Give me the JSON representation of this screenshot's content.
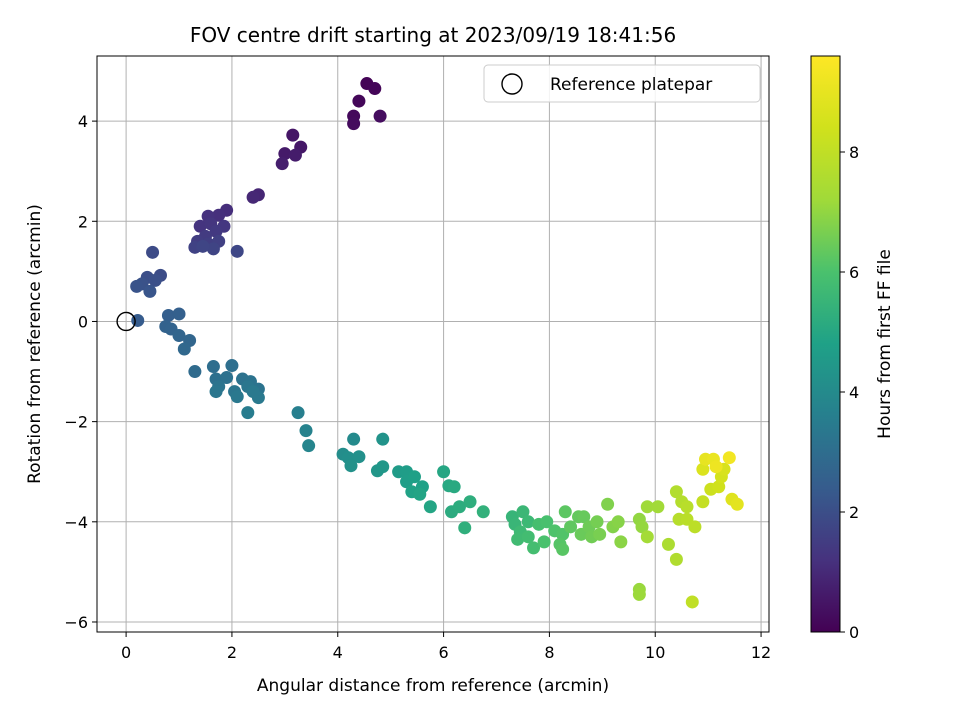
{
  "chart_data": {
    "type": "scatter",
    "title": "FOV centre drift starting at 2023/09/19 18:41:56",
    "xlabel": "Angular distance from reference (arcmin)",
    "ylabel": "Rotation from reference (arcmin)",
    "colorbar_label": "Hours from first FF file",
    "colormap": "viridis",
    "xlim": [
      -0.55,
      12.15
    ],
    "ylim": [
      -6.2,
      5.3
    ],
    "clim": [
      0,
      9.6
    ],
    "xticks": [
      0,
      2,
      4,
      6,
      8,
      10,
      12
    ],
    "yticks": [
      -6,
      -4,
      -2,
      0,
      2,
      4
    ],
    "cticks": [
      0,
      2,
      4,
      6,
      8
    ],
    "grid": true,
    "legend": {
      "position": "top-right",
      "entries": [
        {
          "label": "Reference platepar",
          "marker": "open-circle"
        }
      ]
    },
    "reference_point": {
      "x": 0,
      "y": 0
    },
    "points": [
      {
        "x": 4.55,
        "y": 4.75,
        "c": 0.05
      },
      {
        "x": 4.7,
        "y": 4.65,
        "c": 0.1
      },
      {
        "x": 4.4,
        "y": 4.4,
        "c": 0.15
      },
      {
        "x": 4.3,
        "y": 4.1,
        "c": 0.2
      },
      {
        "x": 4.3,
        "y": 3.95,
        "c": 0.25
      },
      {
        "x": 4.8,
        "y": 4.1,
        "c": 0.3
      },
      {
        "x": 3.15,
        "y": 3.72,
        "c": 0.5
      },
      {
        "x": 3.3,
        "y": 3.48,
        "c": 0.55
      },
      {
        "x": 3.0,
        "y": 3.35,
        "c": 0.6
      },
      {
        "x": 3.2,
        "y": 3.32,
        "c": 0.65
      },
      {
        "x": 2.95,
        "y": 3.15,
        "c": 0.7
      },
      {
        "x": 2.5,
        "y": 2.53,
        "c": 0.9
      },
      {
        "x": 2.4,
        "y": 2.48,
        "c": 0.95
      },
      {
        "x": 1.9,
        "y": 2.22,
        "c": 1.1
      },
      {
        "x": 1.75,
        "y": 2.12,
        "c": 1.15
      },
      {
        "x": 1.55,
        "y": 2.1,
        "c": 1.2
      },
      {
        "x": 1.4,
        "y": 1.9,
        "c": 1.25
      },
      {
        "x": 1.6,
        "y": 1.95,
        "c": 1.3
      },
      {
        "x": 1.85,
        "y": 1.9,
        "c": 1.35
      },
      {
        "x": 1.7,
        "y": 1.8,
        "c": 1.4
      },
      {
        "x": 1.5,
        "y": 1.7,
        "c": 1.45
      },
      {
        "x": 1.35,
        "y": 1.6,
        "c": 1.5
      },
      {
        "x": 1.55,
        "y": 1.55,
        "c": 1.55
      },
      {
        "x": 1.75,
        "y": 1.6,
        "c": 1.6
      },
      {
        "x": 1.3,
        "y": 1.48,
        "c": 1.65
      },
      {
        "x": 1.65,
        "y": 1.45,
        "c": 1.7
      },
      {
        "x": 1.45,
        "y": 1.5,
        "c": 1.75
      },
      {
        "x": 2.1,
        "y": 1.4,
        "c": 1.8
      },
      {
        "x": 0.5,
        "y": 1.38,
        "c": 1.9
      },
      {
        "x": 0.65,
        "y": 0.92,
        "c": 1.95
      },
      {
        "x": 0.4,
        "y": 0.88,
        "c": 2.0
      },
      {
        "x": 0.55,
        "y": 0.82,
        "c": 2.05
      },
      {
        "x": 0.3,
        "y": 0.75,
        "c": 2.1
      },
      {
        "x": 0.2,
        "y": 0.7,
        "c": 2.15
      },
      {
        "x": 0.45,
        "y": 0.6,
        "c": 2.2
      },
      {
        "x": 0.22,
        "y": 0.02,
        "c": 2.4
      },
      {
        "x": 0.8,
        "y": 0.12,
        "c": 2.5
      },
      {
        "x": 1.0,
        "y": 0.15,
        "c": 2.55
      },
      {
        "x": 0.75,
        "y": -0.1,
        "c": 2.6
      },
      {
        "x": 0.85,
        "y": -0.15,
        "c": 2.65
      },
      {
        "x": 1.0,
        "y": -0.28,
        "c": 2.7
      },
      {
        "x": 1.2,
        "y": -0.38,
        "c": 2.75
      },
      {
        "x": 1.1,
        "y": -0.55,
        "c": 2.8
      },
      {
        "x": 1.3,
        "y": -1.0,
        "c": 2.9
      },
      {
        "x": 1.65,
        "y": -0.9,
        "c": 3.0
      },
      {
        "x": 2.0,
        "y": -0.88,
        "c": 3.05
      },
      {
        "x": 1.7,
        "y": -1.15,
        "c": 3.1
      },
      {
        "x": 1.9,
        "y": -1.12,
        "c": 3.12
      },
      {
        "x": 2.2,
        "y": -1.15,
        "c": 3.15
      },
      {
        "x": 2.35,
        "y": -1.2,
        "c": 3.18
      },
      {
        "x": 2.5,
        "y": -1.35,
        "c": 3.2
      },
      {
        "x": 1.75,
        "y": -1.3,
        "c": 3.22
      },
      {
        "x": 2.05,
        "y": -1.4,
        "c": 3.25
      },
      {
        "x": 2.3,
        "y": -1.3,
        "c": 3.28
      },
      {
        "x": 1.7,
        "y": -1.4,
        "c": 3.3
      },
      {
        "x": 2.1,
        "y": -1.5,
        "c": 3.35
      },
      {
        "x": 2.5,
        "y": -1.52,
        "c": 3.38
      },
      {
        "x": 2.4,
        "y": -1.4,
        "c": 3.4
      },
      {
        "x": 2.3,
        "y": -1.82,
        "c": 3.5
      },
      {
        "x": 3.25,
        "y": -1.82,
        "c": 3.6
      },
      {
        "x": 3.4,
        "y": -2.18,
        "c": 3.7
      },
      {
        "x": 3.45,
        "y": -2.48,
        "c": 3.8
      },
      {
        "x": 4.3,
        "y": -2.35,
        "c": 4.0
      },
      {
        "x": 4.1,
        "y": -2.65,
        "c": 4.1
      },
      {
        "x": 4.2,
        "y": -2.72,
        "c": 4.15
      },
      {
        "x": 4.4,
        "y": -2.7,
        "c": 4.2
      },
      {
        "x": 4.25,
        "y": -2.88,
        "c": 4.25
      },
      {
        "x": 4.85,
        "y": -2.35,
        "c": 4.3
      },
      {
        "x": 4.75,
        "y": -2.98,
        "c": 4.4
      },
      {
        "x": 4.85,
        "y": -2.9,
        "c": 4.45
      },
      {
        "x": 5.15,
        "y": -3.0,
        "c": 4.6
      },
      {
        "x": 5.3,
        "y": -3.0,
        "c": 4.65
      },
      {
        "x": 5.3,
        "y": -3.2,
        "c": 4.7
      },
      {
        "x": 5.45,
        "y": -3.1,
        "c": 4.75
      },
      {
        "x": 5.6,
        "y": -3.3,
        "c": 4.8
      },
      {
        "x": 5.4,
        "y": -3.4,
        "c": 4.85
      },
      {
        "x": 5.55,
        "y": -3.45,
        "c": 4.9
      },
      {
        "x": 5.75,
        "y": -3.7,
        "c": 4.95
      },
      {
        "x": 6.0,
        "y": -3.0,
        "c": 5.0
      },
      {
        "x": 6.1,
        "y": -3.28,
        "c": 5.05
      },
      {
        "x": 6.2,
        "y": -3.3,
        "c": 5.1
      },
      {
        "x": 6.15,
        "y": -3.8,
        "c": 5.15
      },
      {
        "x": 6.3,
        "y": -3.7,
        "c": 5.2
      },
      {
        "x": 6.5,
        "y": -3.6,
        "c": 5.25
      },
      {
        "x": 6.4,
        "y": -4.12,
        "c": 5.3
      },
      {
        "x": 6.75,
        "y": -3.8,
        "c": 5.35
      },
      {
        "x": 7.3,
        "y": -3.9,
        "c": 5.5
      },
      {
        "x": 7.35,
        "y": -4.05,
        "c": 5.55
      },
      {
        "x": 7.5,
        "y": -3.8,
        "c": 5.6
      },
      {
        "x": 7.6,
        "y": -4.0,
        "c": 5.65
      },
      {
        "x": 7.45,
        "y": -4.2,
        "c": 5.7
      },
      {
        "x": 7.4,
        "y": -4.35,
        "c": 5.75
      },
      {
        "x": 7.6,
        "y": -4.3,
        "c": 5.8
      },
      {
        "x": 7.7,
        "y": -4.52,
        "c": 5.85
      },
      {
        "x": 7.8,
        "y": -4.05,
        "c": 5.9
      },
      {
        "x": 7.95,
        "y": -4.0,
        "c": 5.95
      },
      {
        "x": 7.9,
        "y": -4.4,
        "c": 6.0
      },
      {
        "x": 8.1,
        "y": -4.18,
        "c": 6.05
      },
      {
        "x": 8.25,
        "y": -4.25,
        "c": 6.1
      },
      {
        "x": 8.2,
        "y": -4.45,
        "c": 6.15
      },
      {
        "x": 8.25,
        "y": -4.55,
        "c": 6.2
      },
      {
        "x": 8.3,
        "y": -3.8,
        "c": 6.25
      },
      {
        "x": 8.4,
        "y": -4.1,
        "c": 6.3
      },
      {
        "x": 8.55,
        "y": -3.9,
        "c": 6.35
      },
      {
        "x": 8.65,
        "y": -3.9,
        "c": 6.4
      },
      {
        "x": 8.6,
        "y": -4.25,
        "c": 6.45
      },
      {
        "x": 8.75,
        "y": -4.1,
        "c": 6.5
      },
      {
        "x": 8.8,
        "y": -4.3,
        "c": 6.55
      },
      {
        "x": 8.9,
        "y": -4.0,
        "c": 6.6
      },
      {
        "x": 8.95,
        "y": -4.25,
        "c": 6.65
      },
      {
        "x": 9.1,
        "y": -3.65,
        "c": 6.75
      },
      {
        "x": 9.2,
        "y": -4.1,
        "c": 6.8
      },
      {
        "x": 9.3,
        "y": -4.0,
        "c": 6.85
      },
      {
        "x": 9.35,
        "y": -4.4,
        "c": 6.9
      },
      {
        "x": 9.7,
        "y": -3.95,
        "c": 7.0
      },
      {
        "x": 9.75,
        "y": -4.1,
        "c": 7.05
      },
      {
        "x": 9.7,
        "y": -5.35,
        "c": 7.1
      },
      {
        "x": 9.7,
        "y": -5.45,
        "c": 7.15
      },
      {
        "x": 9.85,
        "y": -3.7,
        "c": 7.2
      },
      {
        "x": 10.05,
        "y": -3.7,
        "c": 7.25
      },
      {
        "x": 9.85,
        "y": -4.3,
        "c": 7.3
      },
      {
        "x": 10.25,
        "y": -4.45,
        "c": 7.5
      },
      {
        "x": 10.4,
        "y": -4.75,
        "c": 7.6
      },
      {
        "x": 10.4,
        "y": -3.4,
        "c": 7.65
      },
      {
        "x": 10.5,
        "y": -3.6,
        "c": 7.7
      },
      {
        "x": 10.45,
        "y": -3.95,
        "c": 7.75
      },
      {
        "x": 10.6,
        "y": -3.7,
        "c": 7.8
      },
      {
        "x": 10.6,
        "y": -3.95,
        "c": 7.85
      },
      {
        "x": 10.75,
        "y": -4.1,
        "c": 7.9
      },
      {
        "x": 10.7,
        "y": -5.6,
        "c": 8.0
      },
      {
        "x": 10.9,
        "y": -3.6,
        "c": 8.1
      },
      {
        "x": 11.05,
        "y": -3.35,
        "c": 8.3
      },
      {
        "x": 11.2,
        "y": -3.3,
        "c": 8.4
      },
      {
        "x": 11.25,
        "y": -3.1,
        "c": 8.5
      },
      {
        "x": 11.3,
        "y": -2.95,
        "c": 8.6
      },
      {
        "x": 10.9,
        "y": -2.95,
        "c": 8.7
      },
      {
        "x": 11.45,
        "y": -3.55,
        "c": 8.8
      },
      {
        "x": 11.55,
        "y": -3.65,
        "c": 8.9
      },
      {
        "x": 10.95,
        "y": -2.75,
        "c": 9.0
      },
      {
        "x": 11.1,
        "y": -2.75,
        "c": 9.1
      },
      {
        "x": 11.15,
        "y": -2.9,
        "c": 9.2
      },
      {
        "x": 11.4,
        "y": -2.72,
        "c": 9.3
      }
    ]
  }
}
